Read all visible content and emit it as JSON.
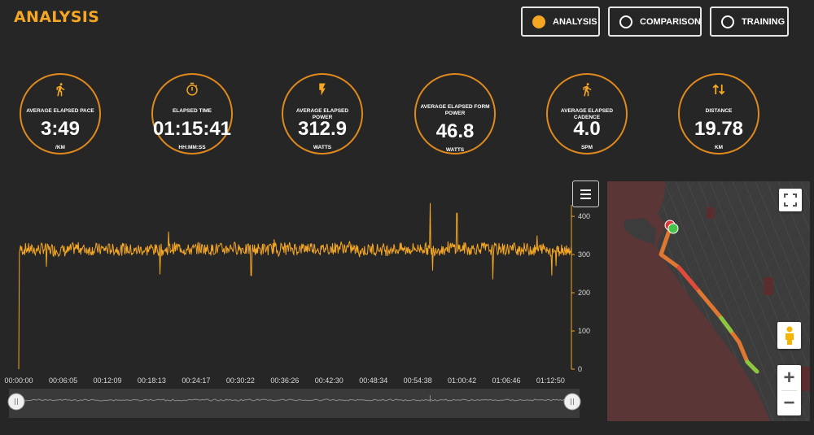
{
  "header": {
    "title": "ANALYSIS"
  },
  "nav": [
    {
      "label": "ANALYSIS",
      "active": true
    },
    {
      "label": "COMPARISON",
      "active": false
    },
    {
      "label": "TRAINING",
      "active": false
    }
  ],
  "stats": [
    {
      "label": "AVERAGE ELAPSED PACE",
      "value": "3:49",
      "unit": "/KM",
      "icon": "runner-icon"
    },
    {
      "label": "ELAPSED TIME",
      "value": "01:15:41",
      "unit": "HH:MM:SS",
      "icon": "stopwatch-icon"
    },
    {
      "label": "AVERAGE ELAPSED POWER",
      "value": "312.9",
      "unit": "WATTS",
      "icon": "lightning-icon"
    },
    {
      "label": "AVERAGE ELAPSED FORM POWER",
      "value": "46.8",
      "unit": "WATTS",
      "icon": ""
    },
    {
      "label": "AVERAGE ELAPSED CADENCE",
      "value": "4.0",
      "unit": "SPM",
      "icon": "walker-icon"
    },
    {
      "label": "DISTANCE",
      "value": "19.78",
      "unit": "KM",
      "icon": "up-down-arrows-icon"
    }
  ],
  "chart_data": {
    "type": "line",
    "x_tick_labels": [
      "00:00:00",
      "00:06:05",
      "00:12:09",
      "00:18:13",
      "00:24:17",
      "00:30:22",
      "00:36:26",
      "00:42:30",
      "00:48:34",
      "00:54:38",
      "01:00:42",
      "01:06:46",
      "01:12:50"
    ],
    "y_ticks": [
      0,
      100,
      200,
      300,
      400
    ],
    "ylim": [
      0,
      430
    ],
    "xlim_seconds": [
      0,
      4541
    ],
    "y_axis_side": "right",
    "color": "#f5a623",
    "base_level": 315,
    "noise_amplitude": 16,
    "spikes": [
      {
        "time": "00:00:00",
        "value": 0
      },
      {
        "time": "00:03:48",
        "value": 268
      },
      {
        "time": "00:19:20",
        "value": 248
      },
      {
        "time": "00:20:30",
        "value": 360
      },
      {
        "time": "00:31:50",
        "value": 245
      },
      {
        "time": "00:35:00",
        "value": 340
      },
      {
        "time": "00:56:20",
        "value": 435
      },
      {
        "time": "00:56:40",
        "value": 258
      },
      {
        "time": "01:00:00",
        "value": 408
      },
      {
        "time": "01:04:55",
        "value": 235
      },
      {
        "time": "01:11:00",
        "value": 350
      },
      {
        "time": "01:13:00",
        "value": 245
      },
      {
        "time": "01:13:35",
        "value": 270
      }
    ],
    "navigator": {
      "start": "00:00:00",
      "end": "01:15:41"
    }
  },
  "map": {
    "water_color": "#5a3636",
    "land_color": "#3c3c3c",
    "route_colors": [
      "#e04a3a",
      "#e87a30",
      "#8cc63f"
    ],
    "start_marker_color": "#46c34a",
    "end_marker_color": "#d93a3a"
  }
}
